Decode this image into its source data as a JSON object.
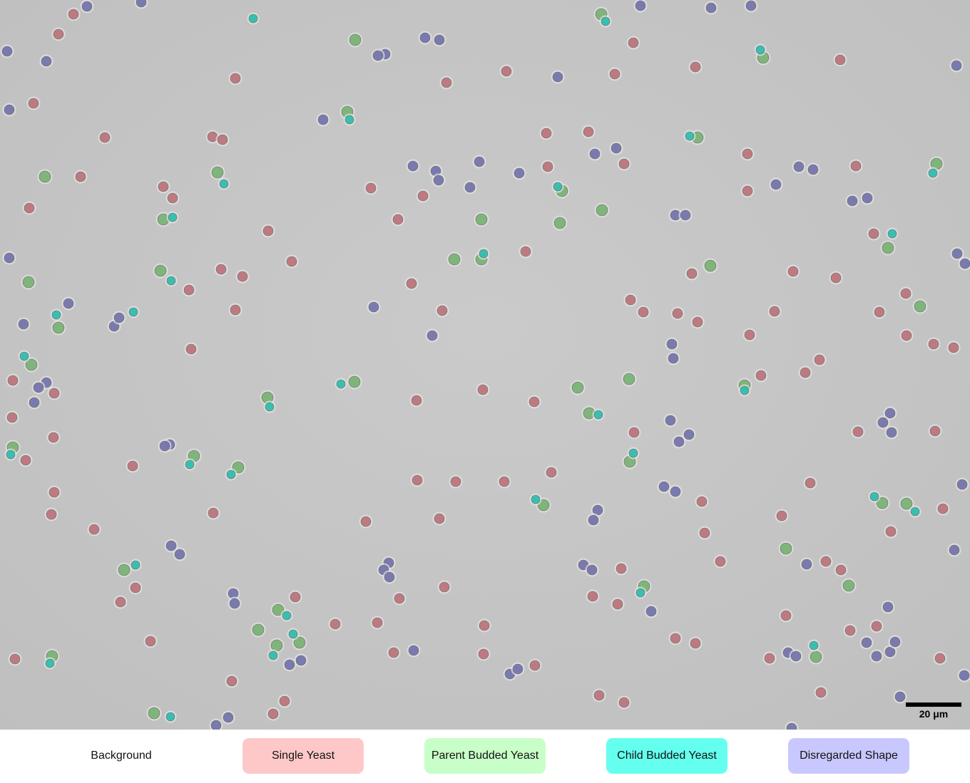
{
  "scale_bar": {
    "label": "20 μm"
  },
  "legend": {
    "items": [
      {
        "label": "Background",
        "color": "#ffffff"
      },
      {
        "label": "Single Yeast",
        "color": "#ffc8c8"
      },
      {
        "label": "Parent Budded Yeast",
        "color": "#c8ffc8"
      },
      {
        "label": "Child Budded Yeast",
        "color": "#64ffee"
      },
      {
        "label": "Disregarded Shape",
        "color": "#c8c8ff"
      }
    ]
  },
  "overlay_colors": {
    "single": "#b86a72",
    "parent": "#6fae6a",
    "child": "#1fb9a9",
    "disregarded": "#6a6aa8",
    "field": "#c6c6c6"
  }
}
